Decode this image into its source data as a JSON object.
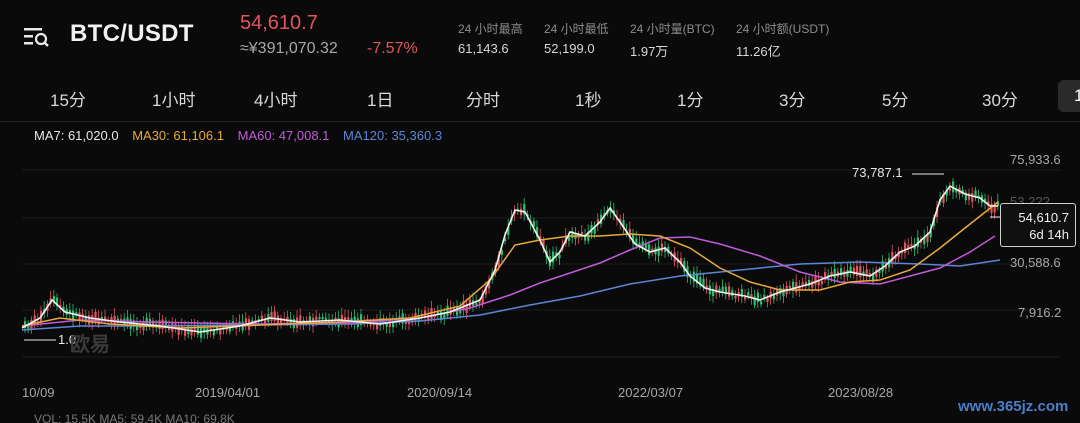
{
  "header": {
    "pair": "BTC/USDT",
    "price": "54,610.7",
    "cny": "≈¥391,070.32",
    "change": "-7.57%",
    "stats": [
      {
        "label": "24 小时最高",
        "value": "61,143.6"
      },
      {
        "label": "24 小时最低",
        "value": "52,199.0"
      },
      {
        "label": "24 小时量(BTC)",
        "value": "1.97万"
      },
      {
        "label": "24 小时额(USDT)",
        "value": "11.26亿"
      }
    ]
  },
  "tabs": [
    "15分",
    "1小时",
    "4小时",
    "1日",
    "分时",
    "1秒",
    "1分",
    "3分",
    "5分",
    "30分"
  ],
  "active_tab": "1",
  "ma": {
    "ma7": "MA7: 61,020.0",
    "ma30": "MA30: 61,106.1",
    "ma60": "MA60: 47,008.1",
    "ma120": "MA120: 35,360.3"
  },
  "colors": {
    "ma7": "#ffffff",
    "ma30": "#e9a93a",
    "ma60": "#c05bd8",
    "ma120": "#5b86d6",
    "up": "#2fbf71",
    "down": "#e0565e"
  },
  "axis": {
    "y": [
      "75,933.6",
      "53,2??",
      "30,588.6",
      "7,916.2"
    ],
    "dates": [
      "10/09",
      "2019/04/01",
      "2020/09/14",
      "2022/03/07",
      "2023/08/28"
    ]
  },
  "annotations": {
    "peak": "73,787.1",
    "low": "1.0",
    "tooltip_price": "54,610.7",
    "tooltip_time": "6d 14h",
    "watermark": "欧易"
  },
  "volume_row": "VOL: 15.5K   MA5: 59.4K   MA10: 69.8K",
  "site_watermark": "www.365jz.com"
}
